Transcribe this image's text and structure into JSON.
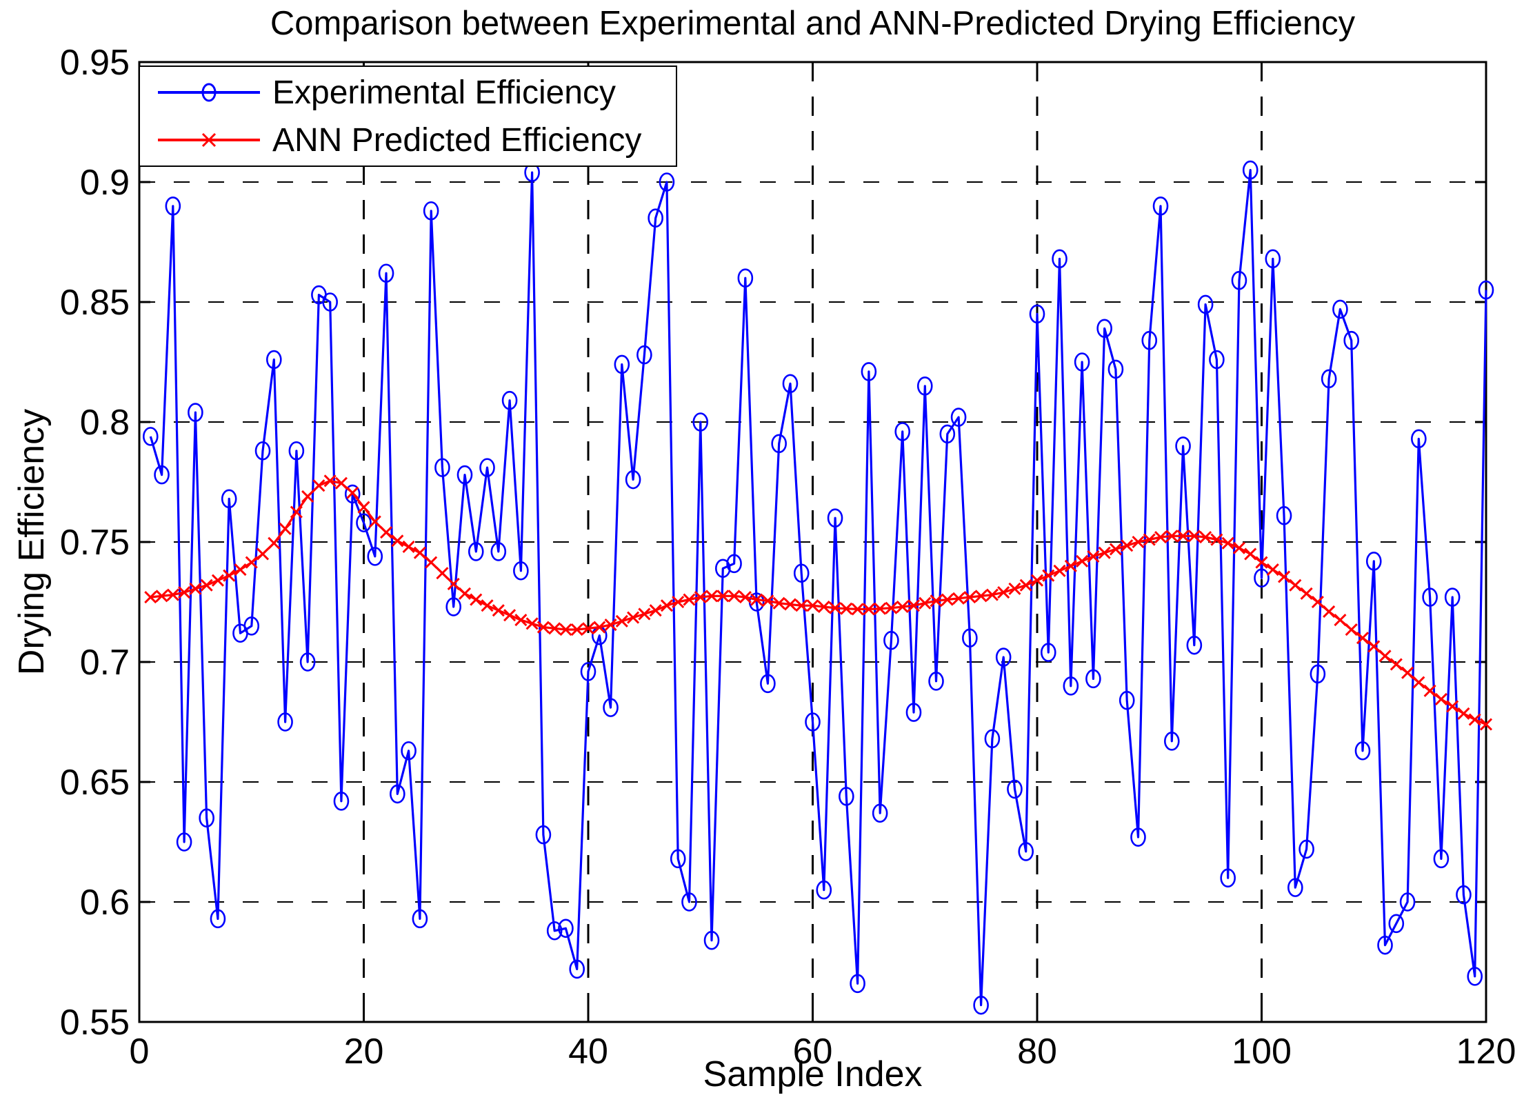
{
  "figure": {
    "title": "Comparison between Experimental and ANN-Predicted Drying Efficiency",
    "xlabel": "Sample Index",
    "ylabel": "Drying Efficiency",
    "background": "#ffffff",
    "axis_color": "#000000",
    "grid_color": "#000000"
  },
  "legend": {
    "items": [
      {
        "label": "Experimental Efficiency",
        "color": "#0000ff",
        "marker": "circle"
      },
      {
        "label": "ANN Predicted Efficiency",
        "color": "#ff0000",
        "marker": "x"
      }
    ]
  },
  "chart_data": {
    "type": "line",
    "title": "Comparison between Experimental and ANN-Predicted Drying Efficiency",
    "xlabel": "Sample Index",
    "ylabel": "Drying Efficiency",
    "xlim": [
      0,
      120
    ],
    "ylim": [
      0.55,
      0.95
    ],
    "x_ticks": [
      0,
      20,
      40,
      60,
      80,
      100,
      120
    ],
    "y_ticks": [
      0.55,
      0.6,
      0.65,
      0.7,
      0.75,
      0.8,
      0.85,
      0.9,
      0.95
    ],
    "grid": "dashed",
    "legend_position": "top-left",
    "x": [
      1,
      2,
      3,
      4,
      5,
      6,
      7,
      8,
      9,
      10,
      11,
      12,
      13,
      14,
      15,
      16,
      17,
      18,
      19,
      20,
      21,
      22,
      23,
      24,
      25,
      26,
      27,
      28,
      29,
      30,
      31,
      32,
      33,
      34,
      35,
      36,
      37,
      38,
      39,
      40,
      41,
      42,
      43,
      44,
      45,
      46,
      47,
      48,
      49,
      50,
      51,
      52,
      53,
      54,
      55,
      56,
      57,
      58,
      59,
      60,
      61,
      62,
      63,
      64,
      65,
      66,
      67,
      68,
      69,
      70,
      71,
      72,
      73,
      74,
      75,
      76,
      77,
      78,
      79,
      80,
      81,
      82,
      83,
      84,
      85,
      86,
      87,
      88,
      89,
      90,
      91,
      92,
      93,
      94,
      95,
      96,
      97,
      98,
      99,
      100,
      101,
      102,
      103,
      104,
      105,
      106,
      107,
      108,
      109,
      110,
      111,
      112,
      113,
      114,
      115,
      116,
      117,
      118,
      119,
      120
    ],
    "series": [
      {
        "name": "Experimental Efficiency",
        "color": "#0000ff",
        "marker": "circle",
        "values": [
          0.794,
          0.778,
          0.89,
          0.625,
          0.804,
          0.635,
          0.593,
          0.768,
          0.712,
          0.715,
          0.788,
          0.826,
          0.675,
          0.788,
          0.7,
          0.853,
          0.85,
          0.642,
          0.77,
          0.758,
          0.744,
          0.862,
          0.645,
          0.663,
          0.593,
          0.888,
          0.781,
          0.723,
          0.778,
          0.746,
          0.781,
          0.746,
          0.809,
          0.738,
          0.904,
          0.628,
          0.588,
          0.589,
          0.572,
          0.696,
          0.711,
          0.681,
          0.824,
          0.776,
          0.828,
          0.885,
          0.9,
          0.618,
          0.6,
          0.8,
          0.584,
          0.739,
          0.741,
          0.86,
          0.725,
          0.691,
          0.791,
          0.816,
          0.737,
          0.675,
          0.605,
          0.76,
          0.644,
          0.566,
          0.821,
          0.637,
          0.709,
          0.796,
          0.679,
          0.815,
          0.692,
          0.795,
          0.802,
          0.71,
          0.557,
          0.668,
          0.702,
          0.647,
          0.621,
          0.845,
          0.704,
          0.868,
          0.69,
          0.825,
          0.693,
          0.839,
          0.822,
          0.684,
          0.627,
          0.834,
          0.89,
          0.667,
          0.79,
          0.707,
          0.849,
          0.826,
          0.61,
          0.859,
          0.905,
          0.735,
          0.868,
          0.761,
          0.606,
          0.622,
          0.695,
          0.818,
          0.847,
          0.834,
          0.663,
          0.742,
          0.582,
          0.591,
          0.6,
          0.793,
          0.727,
          0.618,
          0.727,
          0.603,
          0.569,
          0.855
        ]
      },
      {
        "name": "ANN Predicted Efficiency",
        "color": "#ff0000",
        "marker": "x",
        "values": [
          0.727,
          0.7275,
          0.728,
          0.729,
          0.7305,
          0.732,
          0.734,
          0.736,
          0.7385,
          0.7415,
          0.745,
          0.7495,
          0.7555,
          0.7625,
          0.769,
          0.7735,
          0.7755,
          0.7745,
          0.7705,
          0.7645,
          0.7585,
          0.754,
          0.7505,
          0.748,
          0.7455,
          0.7415,
          0.737,
          0.7325,
          0.7285,
          0.726,
          0.7235,
          0.7215,
          0.7195,
          0.7175,
          0.716,
          0.7145,
          0.714,
          0.7135,
          0.7135,
          0.714,
          0.7145,
          0.7155,
          0.717,
          0.7185,
          0.72,
          0.7215,
          0.7235,
          0.725,
          0.726,
          0.727,
          0.7275,
          0.7275,
          0.7275,
          0.727,
          0.726,
          0.7255,
          0.7245,
          0.724,
          0.7235,
          0.7235,
          0.723,
          0.7225,
          0.7222,
          0.722,
          0.722,
          0.7222,
          0.7225,
          0.723,
          0.7235,
          0.7245,
          0.7255,
          0.726,
          0.7265,
          0.727,
          0.7275,
          0.728,
          0.729,
          0.7305,
          0.732,
          0.734,
          0.736,
          0.738,
          0.74,
          0.742,
          0.744,
          0.7455,
          0.747,
          0.7485,
          0.75,
          0.751,
          0.752,
          0.7525,
          0.7525,
          0.7525,
          0.752,
          0.751,
          0.7495,
          0.7475,
          0.745,
          0.7415,
          0.7385,
          0.7355,
          0.732,
          0.7285,
          0.725,
          0.721,
          0.7175,
          0.7135,
          0.71,
          0.7065,
          0.7025,
          0.699,
          0.6955,
          0.6915,
          0.688,
          0.6845,
          0.6815,
          0.6785,
          0.676,
          0.674
        ]
      }
    ]
  }
}
